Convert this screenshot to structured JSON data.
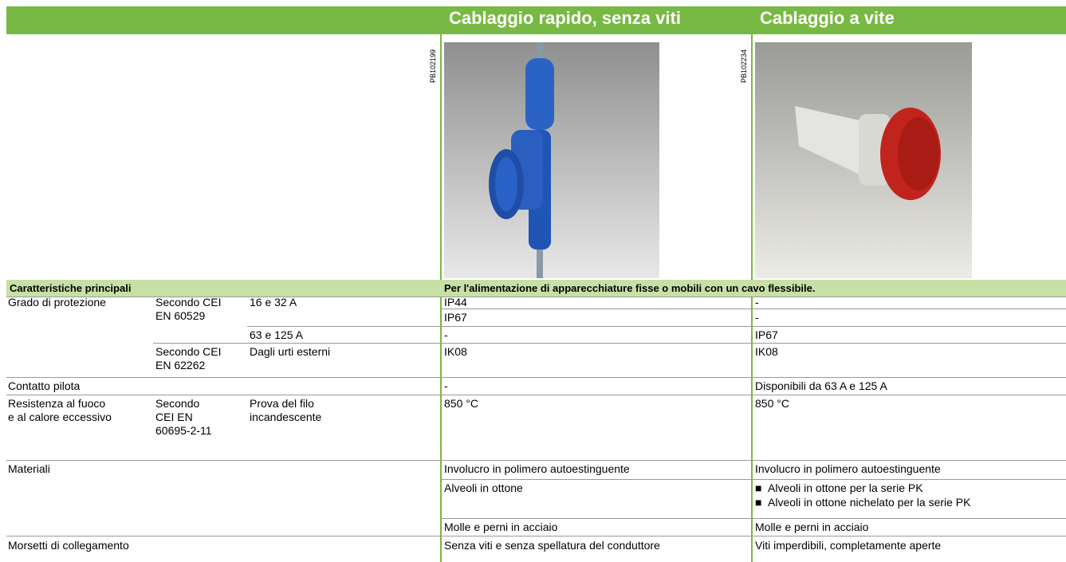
{
  "header": {
    "columns": [
      "Cablaggio rapido, senza viti",
      "Cablaggio a vite"
    ]
  },
  "images": [
    {
      "code": "PB102199"
    },
    {
      "code": "PB102234"
    }
  ],
  "table": {
    "section": "Caratteristiche principali",
    "section_note": "Per l'alimentazione di apparecchiature fisse o mobili con un cavo flessibile.",
    "rows": [
      {
        "label": "Grado di protezione",
        "standard": "Secondo CEI EN 60529",
        "condition": "16 e 32 A",
        "quick": [
          "IP44",
          "IP67"
        ],
        "screw": [
          "-",
          "-"
        ]
      },
      {
        "condition": "63 e 125 A",
        "quick": "-",
        "screw": "IP67"
      },
      {
        "standard": "Secondo CEI EN 62262",
        "condition": "Dagli urti esterni",
        "quick": "IK08",
        "screw": "IK08"
      },
      {
        "label": "Contatto pilota",
        "quick": "-",
        "screw": "Disponibili da 63 A e 125 A"
      },
      {
        "label": [
          "Resistenza al fuoco",
          "e al calore eccessivo"
        ],
        "standard": [
          "Secondo",
          "CEI EN",
          "60695-2-11"
        ],
        "condition": [
          "Prova del filo",
          "incandescente"
        ],
        "quick": "850 °C",
        "screw": "850 °C"
      },
      {
        "label": "Materiali",
        "quick": [
          "Involucro in polimero autoestinguente",
          "Alveoli in ottone",
          "Molle e perni in acciaio"
        ],
        "screw": [
          "Involucro in polimero autoestinguente",
          [
            "Alveoli in ottone per la serie PK",
            "Alveoli in ottone nichelato per la serie PK"
          ],
          "Molle e perni in acciaio"
        ]
      },
      {
        "label": "Morsetti di collegamento",
        "quick": "Senza viti e senza spellatura del conduttore",
        "screw": "Viti imperdibili, completamente aperte"
      }
    ]
  }
}
